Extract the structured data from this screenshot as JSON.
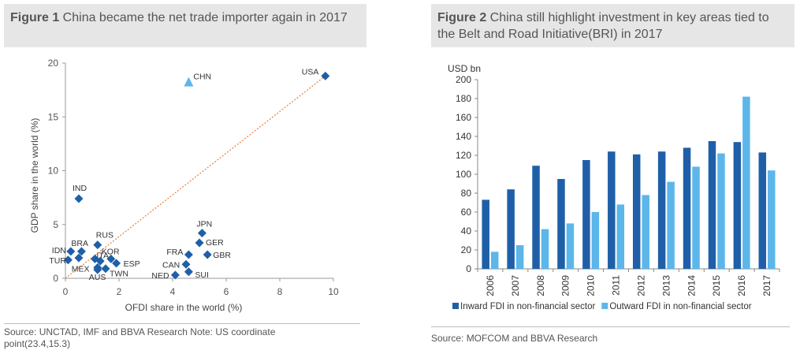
{
  "figure1": {
    "title_bold": "Figure 1",
    "title_text": " China became the net trade importer again in 2017",
    "source": "Source: UNCTAD, IMF and BBVA Research Note: US coordinate point(23.4,15.3)"
  },
  "figure2": {
    "title_bold": "Figure 2",
    "title_text": " China still highlight investment  in key areas tied to the Belt and Road Initiative(BRI) in 2017",
    "source": "Source: MOFCOM and BBVA Research"
  },
  "chart_data": [
    {
      "type": "scatter",
      "xlabel": "OFDI share in the world  (%)",
      "ylabel": "GDP share in the world  (%)",
      "xlim": [
        0,
        10
      ],
      "ylim": [
        0,
        20
      ],
      "xticks": [
        0,
        2,
        4,
        6,
        8,
        10
      ],
      "yticks": [
        0,
        5,
        10,
        15,
        20
      ],
      "reference_line": {
        "from": [
          0,
          0
        ],
        "to": [
          9.7,
          18.8
        ],
        "style": "dotted",
        "color": "#e8874a"
      },
      "colors": {
        "points": "#1f5fa8",
        "highlight": "#5cb6ea"
      },
      "points": [
        {
          "label": "USA",
          "x": 9.7,
          "y": 18.8,
          "marker": "diamond",
          "lx": -30,
          "ly": -2
        },
        {
          "label": "CHN",
          "x": 4.6,
          "y": 18.2,
          "marker": "triangle",
          "lx": 6,
          "ly": -4
        },
        {
          "label": "IND",
          "x": 0.5,
          "y": 7.4,
          "marker": "diamond",
          "lx": -8,
          "ly": -10
        },
        {
          "label": "JPN",
          "x": 5.1,
          "y": 4.2,
          "marker": "diamond",
          "lx": -7,
          "ly": -8
        },
        {
          "label": "GER",
          "x": 5.0,
          "y": 3.3,
          "marker": "diamond",
          "lx": 8,
          "ly": 3
        },
        {
          "label": "GBR",
          "x": 5.3,
          "y": 2.2,
          "marker": "diamond",
          "lx": 7,
          "ly": 4
        },
        {
          "label": "FRA",
          "x": 4.6,
          "y": 2.2,
          "marker": "diamond",
          "lx": -28,
          "ly": 0
        },
        {
          "label": "CAN",
          "x": 4.5,
          "y": 1.3,
          "marker": "diamond",
          "lx": -30,
          "ly": 4
        },
        {
          "label": "SUI",
          "x": 4.6,
          "y": 0.6,
          "marker": "diamond",
          "lx": 8,
          "ly": 7
        },
        {
          "label": "NED",
          "x": 4.1,
          "y": 0.3,
          "marker": "diamond",
          "lx": -30,
          "ly": 4
        },
        {
          "label": "RUS",
          "x": 1.2,
          "y": 3.1,
          "marker": "diamond",
          "lx": -2,
          "ly": -9
        },
        {
          "label": "BRA",
          "x": 0.6,
          "y": 2.5,
          "marker": "diamond",
          "lx": -13,
          "ly": -7
        },
        {
          "label": "IDN",
          "x": 0.2,
          "y": 2.5,
          "marker": "diamond",
          "lx": -24,
          "ly": 2
        },
        {
          "label": "ITA",
          "x": 1.1,
          "y": 1.8,
          "marker": "diamond",
          "lx": 2,
          "ly": -1
        },
        {
          "label": "KOR",
          "x": 1.7,
          "y": 1.8,
          "marker": "diamond",
          "lx": -12,
          "ly": -6
        },
        {
          "label": "ESP",
          "x": 1.9,
          "y": 1.4,
          "marker": "diamond",
          "lx": 9,
          "ly": 4
        },
        {
          "label": "TUR",
          "x": 0.1,
          "y": 1.7,
          "marker": "diamond",
          "lx": -24,
          "ly": 4
        },
        {
          "label": "MEX",
          "x": 1.2,
          "y": 1.0,
          "marker": "diamond",
          "lx": -33,
          "ly": 5
        },
        {
          "label": "TWN",
          "x": 1.5,
          "y": 0.9,
          "marker": "diamond",
          "lx": 5,
          "ly": 10
        },
        {
          "label": "AUS",
          "x": 1.2,
          "y": 0.8,
          "marker": "diamond",
          "lx": -11,
          "ly": 13
        },
        {
          "label": "",
          "x": 0.5,
          "y": 1.9,
          "marker": "diamond",
          "lx": 0,
          "ly": 0
        },
        {
          "label": "",
          "x": 1.3,
          "y": 1.6,
          "marker": "diamond",
          "lx": 0,
          "ly": 0
        }
      ]
    },
    {
      "type": "bar",
      "unit_label": "USD bn",
      "ylim": [
        0,
        200
      ],
      "yticks": [
        0,
        20,
        40,
        60,
        80,
        100,
        120,
        140,
        160,
        180,
        200
      ],
      "categories": [
        "2006",
        "2007",
        "2008",
        "2009",
        "2010",
        "2011",
        "2012",
        "2013",
        "2014",
        "2015",
        "2016",
        "2017"
      ],
      "series": [
        {
          "name": "Inward FDI in non-financial sector",
          "color": "#1f5fa8",
          "values": [
            73,
            84,
            109,
            95,
            115,
            124,
            121,
            124,
            128,
            135,
            134,
            123
          ]
        },
        {
          "name": "Outward FDI in non-financial sector",
          "color": "#5cb6ea",
          "values": [
            18,
            25,
            42,
            48,
            60,
            68,
            78,
            92,
            108,
            122,
            182,
            104
          ]
        }
      ]
    }
  ]
}
